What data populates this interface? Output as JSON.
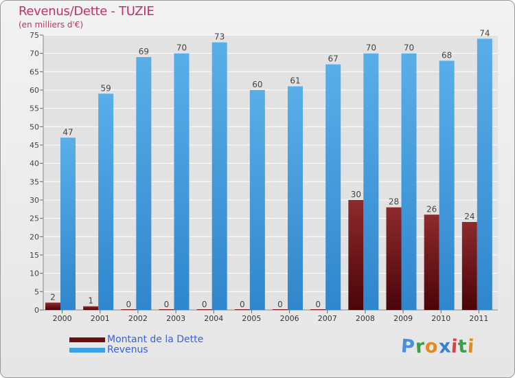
{
  "chart_data": {
    "type": "bar",
    "title": "Revenus/Dette - TUZIE",
    "subtitle": "(en milliers d'€)",
    "categories": [
      "2000",
      "2001",
      "2002",
      "2003",
      "2004",
      "2005",
      "2006",
      "2007",
      "2008",
      "2009",
      "2010",
      "2011"
    ],
    "series": [
      {
        "name": "Montant de la Dette",
        "color": "#7a1416",
        "values": [
          2,
          1,
          0,
          0,
          0,
          0,
          0,
          0,
          30,
          28,
          26,
          24
        ]
      },
      {
        "name": "Revenus",
        "color": "#3d9fe6",
        "values": [
          47,
          59,
          69,
          70,
          73,
          60,
          61,
          67,
          70,
          70,
          68,
          74
        ]
      }
    ],
    "ylim": [
      0,
      75
    ],
    "yticks": [
      "0",
      "5",
      "10",
      "15",
      "20",
      "25",
      "30",
      "35",
      "40",
      "45",
      "50",
      "55",
      "60",
      "65",
      "70",
      "75"
    ],
    "grid": true,
    "legend_position": "bottom-left"
  },
  "logo": {
    "letters": [
      "P",
      "r",
      "o",
      "x",
      "i",
      "t",
      "i"
    ],
    "colors": [
      "#4a8fd8",
      "#3a9e4a",
      "#e38a1c",
      "#3a7fd0",
      "#e04040",
      "#3a9e4a",
      "#e38a1c"
    ]
  }
}
